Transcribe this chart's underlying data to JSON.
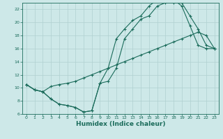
{
  "title": "",
  "xlabel": "Humidex (Indice chaleur)",
  "ylabel": "",
  "bg_color": "#cde8e8",
  "line_color": "#1a6b5a",
  "xlim": [
    -0.5,
    23.5
  ],
  "ylim": [
    6,
    23
  ],
  "xticks": [
    0,
    1,
    2,
    3,
    4,
    5,
    6,
    7,
    8,
    9,
    10,
    11,
    12,
    13,
    14,
    15,
    16,
    17,
    18,
    19,
    20,
    21,
    22,
    23
  ],
  "yticks": [
    6,
    8,
    10,
    12,
    14,
    16,
    18,
    20,
    22
  ],
  "curve1_x": [
    0,
    1,
    2,
    3,
    4,
    5,
    6,
    7,
    8,
    9,
    10,
    11,
    12,
    13,
    14,
    15,
    16,
    17,
    18,
    19,
    20,
    21,
    22,
    23
  ],
  "curve1_y": [
    10.5,
    9.7,
    9.4,
    8.3,
    7.5,
    7.3,
    7.0,
    6.3,
    6.5,
    10.7,
    11.0,
    13.0,
    17.5,
    19.0,
    20.5,
    21.0,
    22.5,
    23.0,
    23.0,
    23.0,
    21.0,
    19.0,
    16.5,
    16.0
  ],
  "curve2_x": [
    0,
    1,
    2,
    3,
    4,
    5,
    6,
    7,
    8,
    9,
    10,
    11,
    12,
    13,
    14,
    15,
    16,
    17,
    18,
    19,
    20,
    21,
    22,
    23
  ],
  "curve2_y": [
    10.5,
    9.7,
    9.4,
    8.3,
    7.5,
    7.3,
    7.0,
    6.3,
    6.5,
    10.7,
    13.0,
    17.5,
    19.0,
    20.3,
    21.0,
    22.5,
    23.5,
    23.5,
    23.5,
    22.5,
    19.5,
    16.5,
    16.0,
    16.0
  ],
  "curve3_x": [
    0,
    1,
    2,
    3,
    4,
    5,
    6,
    7,
    8,
    9,
    10,
    11,
    12,
    13,
    14,
    15,
    16,
    17,
    18,
    19,
    20,
    21,
    22,
    23
  ],
  "curve3_y": [
    10.5,
    9.7,
    9.4,
    10.2,
    10.5,
    10.7,
    11.0,
    11.5,
    12.0,
    12.5,
    13.0,
    13.5,
    14.0,
    14.5,
    15.0,
    15.5,
    16.0,
    16.5,
    17.0,
    17.5,
    18.0,
    18.5,
    18.0,
    16.0
  ],
  "grid_color": "#b0d0d0",
  "xlabel_fontsize": 6.5,
  "tick_fontsize": 4.5
}
